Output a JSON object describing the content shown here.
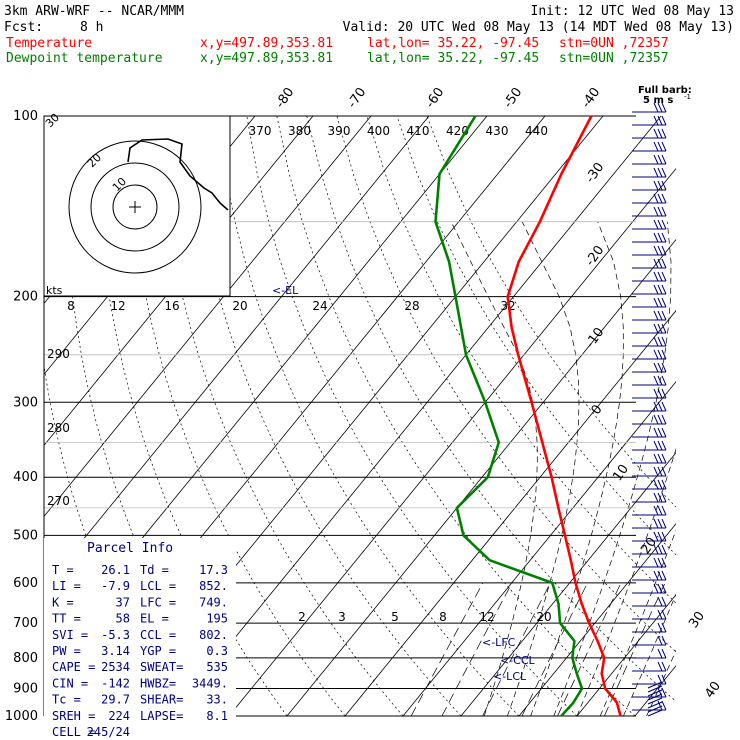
{
  "header": {
    "model": "3km ARW-WRF -- NCAR/MMM",
    "init": "Init: 12 UTC Wed 08 May 13",
    "fcst_label": "Fcst:",
    "fcst_value": "8 h",
    "valid": "Valid: 20 UTC Wed 08 May 13 (14 MDT Wed 08 May 13)",
    "temp_line": {
      "label": "Temperature",
      "xy": "x,y=497.89,353.81",
      "latlon": "lat,lon= 35.22, -97.45",
      "stn": "stn=0UN ,72357",
      "color": "#ff0000"
    },
    "dew_line": {
      "label": "Dewpoint temperature",
      "xy": "x,y=497.89,353.81",
      "latlon": "lat,lon= 35.22, -97.45",
      "stn": "stn=0UN ,72357",
      "color": "#008000"
    }
  },
  "barb_legend": {
    "line1": "Full barb:",
    "line2": "5 m s"
  },
  "parcel_info": {
    "title": "Parcel Info",
    "rows": [
      [
        "T  =",
        "26.1",
        "Td =",
        "17.3"
      ],
      [
        "LI =",
        "-7.9",
        "LCL =",
        "852."
      ],
      [
        "K  =",
        "37",
        "LFC =",
        "749."
      ],
      [
        "TT =",
        "58",
        "EL =",
        "195"
      ],
      [
        "SVI =",
        "-5.3",
        "CCL =",
        "802."
      ],
      [
        "PW =",
        "3.14",
        "YGP =",
        "0.3"
      ],
      [
        "CAPE =",
        "2534",
        "SWEAT=",
        "535"
      ],
      [
        "CIN =",
        "-142",
        "HWBZ=",
        "3449."
      ],
      [
        "Tc =",
        "29.7",
        "SHEAR=",
        "33."
      ],
      [
        "SREH =",
        "224",
        "LAPSE=",
        "8.1"
      ],
      [
        "CELL =",
        "245/24",
        "",
        ""
      ]
    ]
  },
  "level_markers": [
    "<-EL",
    "<-LFC",
    "<-CCL",
    "<-LCL"
  ],
  "hodograph": {
    "ring_labels": [
      "10",
      "20",
      "30"
    ],
    "kts_label": "kts"
  },
  "chart_data": {
    "type": "line",
    "pressure_ticks": [
      100,
      200,
      300,
      400,
      500,
      600,
      700,
      800,
      900,
      1000
    ],
    "isotherm_labels_top": [
      "-80",
      "-70",
      "-60",
      "-50",
      "-40"
    ],
    "isotherm_labels_right": [
      "-30",
      "-20",
      "-10",
      "0",
      "10",
      "20",
      "30",
      "40"
    ],
    "theta_e_labels": [
      "370",
      "380",
      "390",
      "400",
      "410",
      "420",
      "430",
      "440"
    ],
    "theta_labels": [
      "290",
      "280",
      "270"
    ],
    "mixing_ratio_labels_upper": [
      "8",
      "12",
      "16",
      "20",
      "24",
      "28",
      "32"
    ],
    "mixing_ratio_labels_lower": [
      "2",
      "3",
      "5",
      "8",
      "12",
      "20"
    ],
    "series": [
      {
        "name": "Temperature",
        "color": "#ff0000",
        "points": [
          [
            1000,
            27.5
          ],
          [
            950,
            25
          ],
          [
            900,
            21
          ],
          [
            850,
            18.3
          ],
          [
            800,
            16.5
          ],
          [
            750,
            13
          ],
          [
            700,
            9
          ],
          [
            650,
            5
          ],
          [
            600,
            1
          ],
          [
            550,
            -3
          ],
          [
            500,
            -7.5
          ],
          [
            450,
            -12.5
          ],
          [
            400,
            -18
          ],
          [
            350,
            -24.5
          ],
          [
            300,
            -32
          ],
          [
            250,
            -41
          ],
          [
            225,
            -46
          ],
          [
            200,
            -51
          ],
          [
            175,
            -54
          ],
          [
            150,
            -56
          ],
          [
            125,
            -59
          ],
          [
            100,
            -62
          ]
        ]
      },
      {
        "name": "Dewpoint temperature",
        "color": "#008000",
        "points": [
          [
            1000,
            17.3
          ],
          [
            950,
            17.5
          ],
          [
            900,
            17
          ],
          [
            850,
            14
          ],
          [
            800,
            11
          ],
          [
            750,
            9
          ],
          [
            700,
            4
          ],
          [
            650,
            1
          ],
          [
            600,
            -3
          ],
          [
            550,
            -17
          ],
          [
            500,
            -25
          ],
          [
            450,
            -30
          ],
          [
            400,
            -29
          ],
          [
            350,
            -32
          ],
          [
            300,
            -40
          ],
          [
            250,
            -50
          ],
          [
            200,
            -60
          ],
          [
            175,
            -66
          ],
          [
            150,
            -74
          ],
          [
            125,
            -80
          ],
          [
            100,
            -82
          ]
        ]
      }
    ]
  }
}
